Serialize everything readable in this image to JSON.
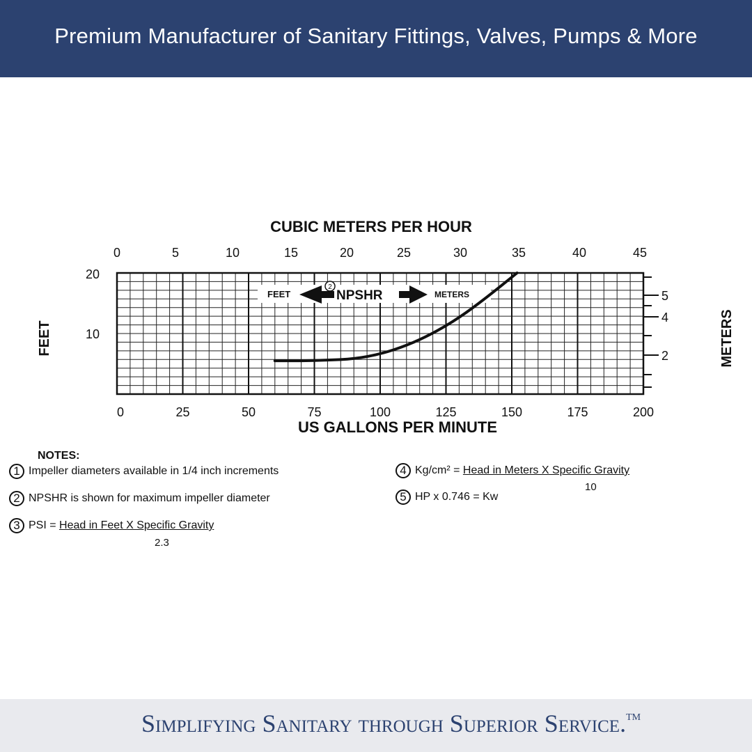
{
  "header": {
    "title": "Premium Manufacturer of Sanitary Fittings, Valves, Pumps & More"
  },
  "footer": {
    "tagline": "Simplifying Sanitary through Superior Service.",
    "tm": "TM"
  },
  "chart_data": {
    "type": "line",
    "title": "CUBIC METERS PER HOUR",
    "xlabel": "US GALLONS PER MINUTE",
    "ylabel_left": "FEET",
    "ylabel_right": "METERS",
    "x_range": [
      0,
      200
    ],
    "y_range": [
      0,
      20
    ],
    "x_top_ticks": [
      "0",
      "5",
      "10",
      "15",
      "20",
      "25",
      "30",
      "35",
      "40",
      "45"
    ],
    "x_bottom_ticks": [
      "0",
      "25",
      "50",
      "75",
      "100",
      "125",
      "150",
      "175",
      "200"
    ],
    "y_left_ticks": [
      "10",
      "20"
    ],
    "y_right_ticks": [
      "2",
      "4",
      "5"
    ],
    "grid": true,
    "series": [
      {
        "x": [
          60,
          70,
          80,
          90,
          100,
          110,
          120,
          130,
          140,
          152
        ],
        "y": [
          5.5,
          5.5,
          5.6,
          5.8,
          6.6,
          8.0,
          10.0,
          12.6,
          15.8,
          20
        ]
      }
    ],
    "annotations": {
      "feet": "FEET",
      "npshr": "NPSHR",
      "meters": "METERS",
      "marker": "2"
    }
  },
  "notes": {
    "title": "NOTES:",
    "items": [
      {
        "num": "1",
        "text": "Impeller diameters available in 1/4 inch increments"
      },
      {
        "num": "2",
        "text": "NPSHR is shown for maximum impeller diameter"
      },
      {
        "num": "3",
        "prefix": "PSI = ",
        "numerator": "Head in Feet X Specific Gravity",
        "denominator": "2.3"
      },
      {
        "num": "4",
        "prefix": "Kg/cm² = ",
        "numerator": "Head in Meters X Specific Gravity",
        "denominator": "10"
      },
      {
        "num": "5",
        "text": "HP x 0.746 = Kw"
      }
    ]
  }
}
